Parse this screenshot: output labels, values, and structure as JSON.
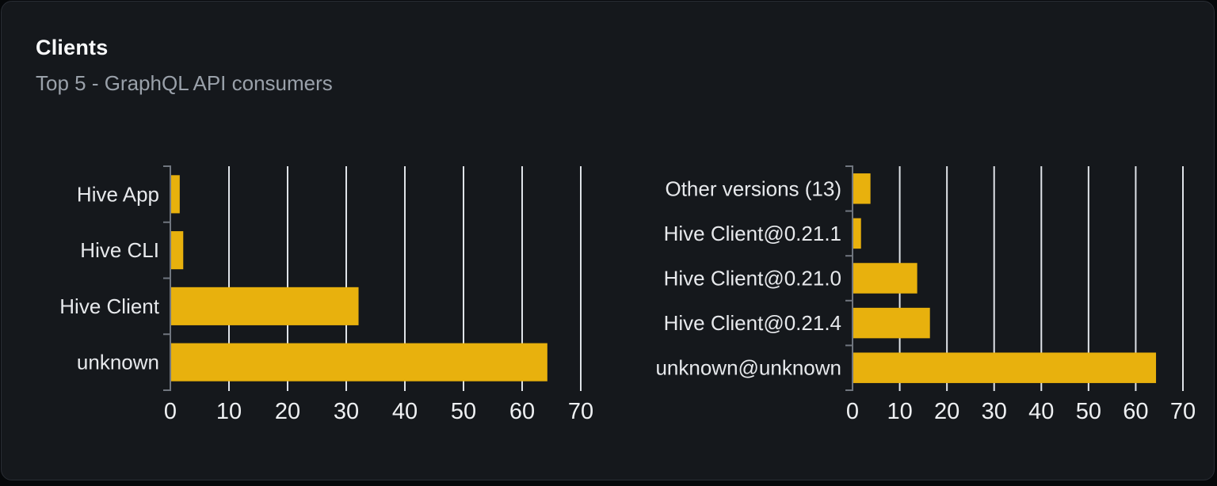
{
  "header": {
    "title": "Clients",
    "subtitle": "Top 5 - GraphQL API consumers"
  },
  "colors": {
    "page_bg": "#06080a",
    "card_bg": "#15181c",
    "card_border": "#292d34",
    "title": "#fafbfc",
    "subtitle": "#9aa1aa",
    "bar": "#e8b10d",
    "grid": "#dfe3e8",
    "axis": "#70767f",
    "category_label": "#e7e9ec",
    "tick_label": "#eef0f2"
  },
  "chart_data": [
    {
      "type": "bar",
      "orientation": "horizontal",
      "categories": [
        "Hive App",
        "Hive CLI",
        "Hive Client",
        "unknown"
      ],
      "values": [
        1.6,
        2.2,
        32.1,
        64.3
      ],
      "xlim": [
        0,
        70
      ],
      "xticks": [
        0,
        10,
        20,
        30,
        40,
        50,
        60,
        70
      ],
      "grid": true,
      "legend": false
    },
    {
      "type": "bar",
      "orientation": "horizontal",
      "categories": [
        "Other versions (13)",
        "Hive Client@0.21.1",
        "Hive Client@0.21.0",
        "Hive Client@0.21.4",
        "unknown@unknown"
      ],
      "values": [
        3.8,
        1.8,
        13.7,
        16.4,
        64.3
      ],
      "xlim": [
        0,
        70
      ],
      "xticks": [
        0,
        10,
        20,
        30,
        40,
        50,
        60,
        70
      ],
      "grid": true,
      "legend": false
    }
  ]
}
